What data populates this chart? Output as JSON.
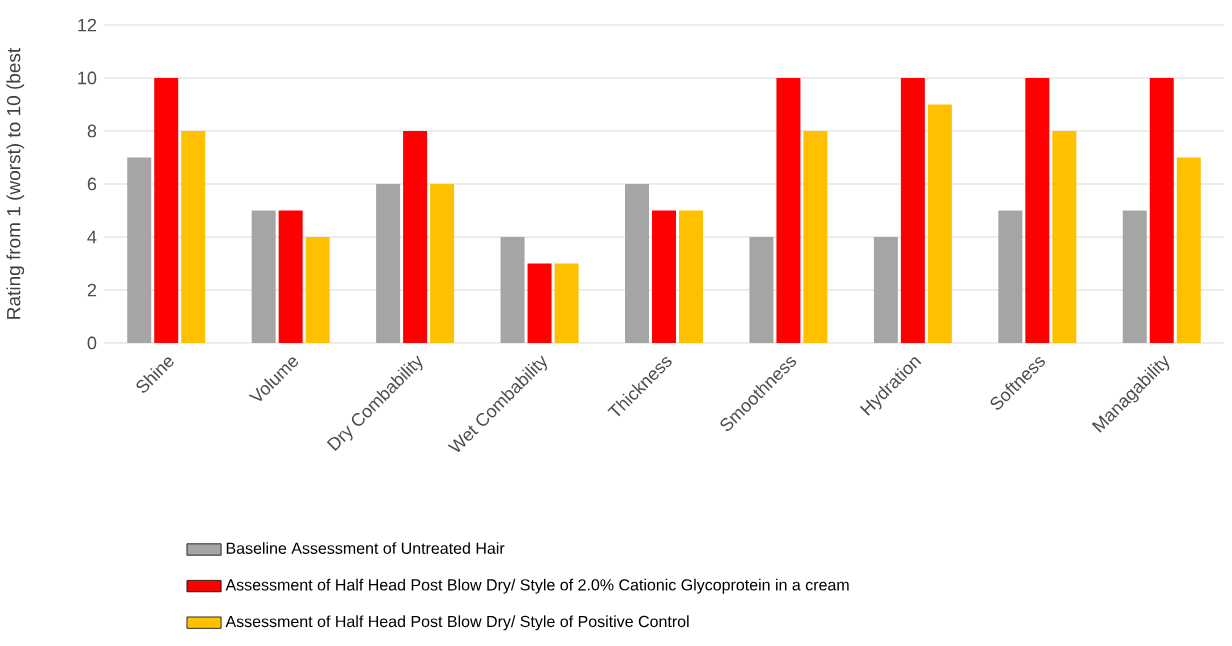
{
  "chart_data": {
    "type": "bar",
    "ylabel": "Rating from 1 (worst) to 10 (best",
    "categories": [
      "Shine",
      "Volume",
      "Dry Combability",
      "Wet Combability",
      "Thickness",
      "Smoothness",
      "Hydration",
      "Softness",
      "Managability"
    ],
    "series": [
      {
        "name": "Baseline Assessment of Untreated Hair",
        "color": "#a5a5a5",
        "values": [
          7,
          5,
          6,
          4,
          6,
          4,
          4,
          5,
          5
        ]
      },
      {
        "name": "Assessment of Half Head Post Blow Dry/ Style of 2.0% Cationic Glycoprotein in a cream",
        "color": "#ff0000",
        "values": [
          10,
          5,
          8,
          3,
          5,
          10,
          10,
          10,
          10
        ]
      },
      {
        "name": "Assessment of Half Head Post Blow Dry/ Style of Positive Control",
        "color": "#ffc000",
        "values": [
          8,
          4,
          6,
          3,
          5,
          8,
          9,
          8,
          7
        ]
      }
    ],
    "ylim": [
      0,
      12
    ],
    "yticks": [
      0,
      2,
      4,
      6,
      8,
      10,
      12
    ],
    "grid": "y",
    "legend": "bottom"
  }
}
